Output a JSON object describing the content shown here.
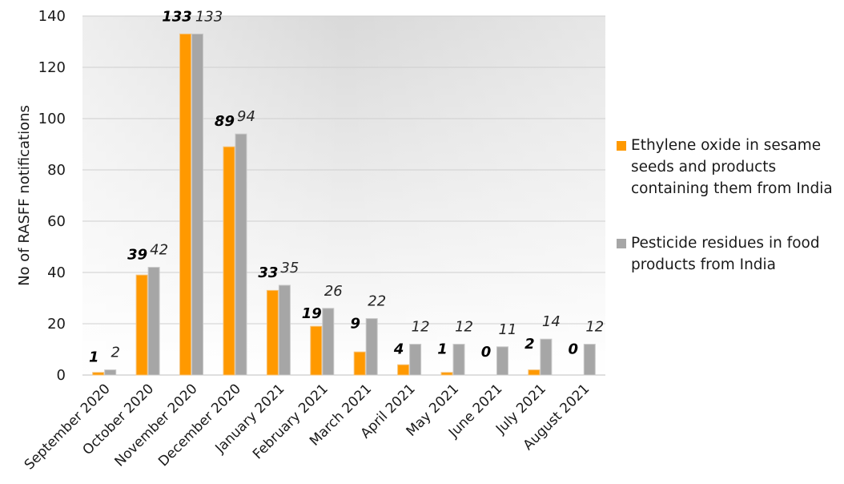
{
  "chart_data": {
    "type": "bar",
    "title": "",
    "xlabel": "",
    "ylabel": "No of RASFF notifications",
    "ylim": [
      0,
      140
    ],
    "yticks": [
      0,
      20,
      40,
      60,
      80,
      100,
      120,
      140
    ],
    "grid": true,
    "legend_position": "right",
    "categories": [
      "September 2020",
      "October 2020",
      "November 2020",
      "December 2020",
      "January 2021",
      "February 2021",
      "March 2021",
      "April 2021",
      "May 2021",
      "June 2021",
      "July 2021",
      "August 2021"
    ],
    "series": [
      {
        "name": "Ethylene oxide in sesame seeds and products containing them from India",
        "color": "#FF9900",
        "label_style": "bold-italic",
        "values": [
          1,
          39,
          133,
          89,
          33,
          19,
          9,
          4,
          1,
          0,
          2,
          0
        ]
      },
      {
        "name": "Pesticide residues in food products from India",
        "color": "#A6A6A6",
        "label_style": "italic",
        "values": [
          2,
          42,
          133,
          94,
          35,
          26,
          22,
          12,
          12,
          11,
          14,
          12
        ]
      }
    ]
  },
  "legend": {
    "items": [
      {
        "lines": [
          "Ethylene oxide in sesame",
          "seeds and products",
          "containing them from India"
        ],
        "color": "#FF9900"
      },
      {
        "lines": [
          "Pesticide residues in food",
          "products from India"
        ],
        "color": "#A6A6A6"
      }
    ]
  }
}
